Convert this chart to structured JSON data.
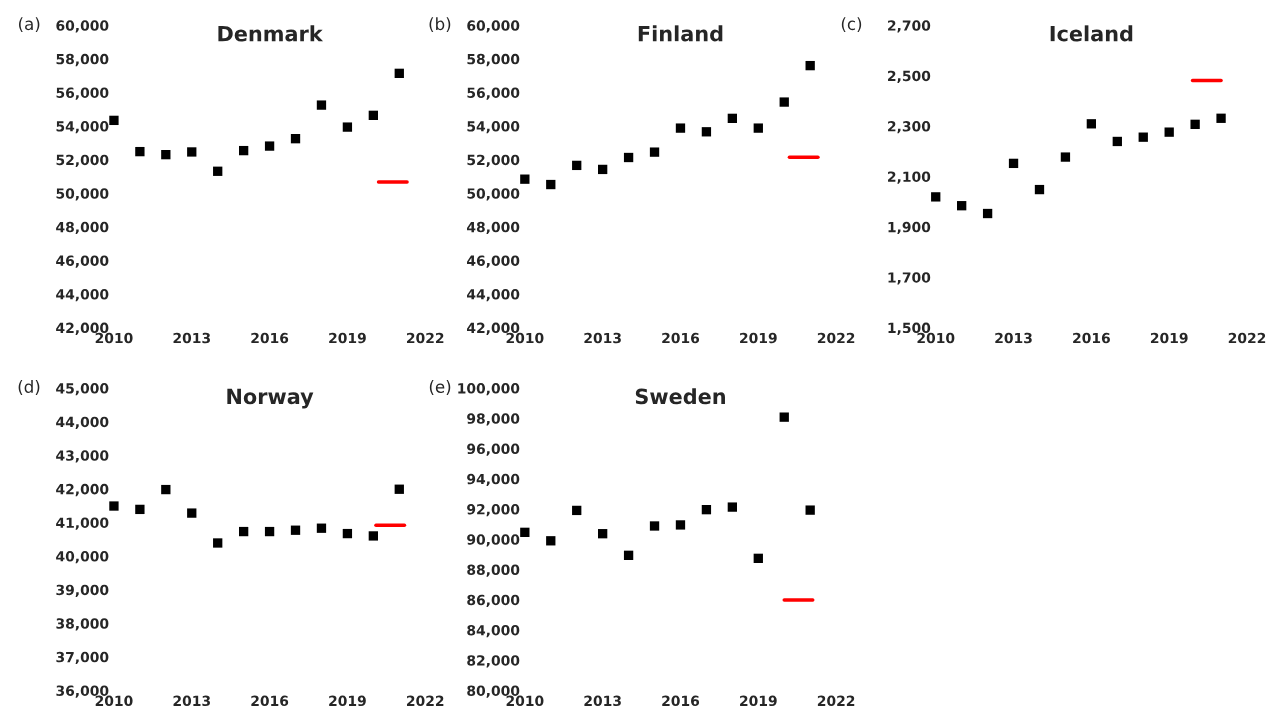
{
  "chart_data": [
    {
      "type": "scatter",
      "title": "Denmark",
      "annotations": [
        "(a)"
      ],
      "legend": false,
      "grid": false,
      "x": [
        2010,
        2011,
        2012,
        2013,
        2014,
        2015,
        2016,
        2017,
        2018,
        2019,
        2020,
        2021
      ],
      "xlim": [
        2010,
        2022
      ],
      "xticks": [
        2010,
        2013,
        2016,
        2019,
        2022
      ],
      "ylim": [
        42000,
        60000
      ],
      "yticks": [
        {
          "value": 42000,
          "label": "42,000"
        },
        {
          "value": 44000,
          "label": "44,000"
        },
        {
          "value": 46000,
          "label": "46,000"
        },
        {
          "value": 48000,
          "label": "48,000"
        },
        {
          "value": 50000,
          "label": "50,000"
        },
        {
          "value": 52000,
          "label": "52,000"
        },
        {
          "value": 54000,
          "label": "54,000"
        },
        {
          "value": 56000,
          "label": "56,000"
        },
        {
          "value": 58000,
          "label": "58,000"
        },
        {
          "value": 60000,
          "label": "60,000"
        }
      ],
      "series": [
        {
          "color": "#000000",
          "marker": "square",
          "values": [
            54340,
            52480,
            52300,
            52460,
            51310,
            52540,
            52810,
            53250,
            55250,
            53940,
            54640,
            57140
          ]
        },
        {
          "type": "line",
          "color": "#ff0000",
          "x": [
            2020.2,
            2021.3
          ],
          "values": [
            50670,
            50670
          ]
        }
      ]
    },
    {
      "type": "scatter",
      "title": "Finland",
      "annotations": [
        "(b)"
      ],
      "legend": false,
      "grid": false,
      "x": [
        2010,
        2011,
        2012,
        2013,
        2014,
        2015,
        2016,
        2017,
        2018,
        2019,
        2020,
        2021
      ],
      "xlim": [
        2010,
        2022
      ],
      "xticks": [
        2010,
        2013,
        2016,
        2019,
        2022
      ],
      "ylim": [
        42000,
        60000
      ],
      "yticks": [
        {
          "value": 42000,
          "label": "42,000"
        },
        {
          "value": 44000,
          "label": "44,000"
        },
        {
          "value": 46000,
          "label": "46,000"
        },
        {
          "value": 48000,
          "label": "48,000"
        },
        {
          "value": 50000,
          "label": "50,000"
        },
        {
          "value": 52000,
          "label": "52,000"
        },
        {
          "value": 54000,
          "label": "54,000"
        },
        {
          "value": 56000,
          "label": "56,000"
        },
        {
          "value": 58000,
          "label": "58,000"
        },
        {
          "value": 60000,
          "label": "60,000"
        }
      ],
      "series": [
        {
          "color": "#000000",
          "marker": "square",
          "values": [
            50840,
            50520,
            51660,
            51420,
            52130,
            52450,
            53880,
            53660,
            54460,
            53880,
            55430,
            57600
          ]
        },
        {
          "type": "line",
          "color": "#ff0000",
          "x": [
            2020.2,
            2021.3
          ],
          "values": [
            52150,
            52150
          ]
        }
      ]
    },
    {
      "type": "scatter",
      "title": "Iceland",
      "annotations": [
        "(c)"
      ],
      "legend": false,
      "grid": false,
      "x": [
        2010,
        2011,
        2012,
        2013,
        2014,
        2015,
        2016,
        2017,
        2018,
        2019,
        2020,
        2021
      ],
      "xlim": [
        2010,
        2022
      ],
      "xticks": [
        2010,
        2013,
        2016,
        2019,
        2022
      ],
      "ylim": [
        1500,
        2700
      ],
      "yticks": [
        {
          "value": 1500,
          "label": "1,500"
        },
        {
          "value": 1700,
          "label": "1,700"
        },
        {
          "value": 1900,
          "label": "1,900"
        },
        {
          "value": 2100,
          "label": "2,100"
        },
        {
          "value": 2300,
          "label": "2,300"
        },
        {
          "value": 2500,
          "label": "2,500"
        },
        {
          "value": 2700,
          "label": "2,700"
        }
      ],
      "series": [
        {
          "color": "#000000",
          "marker": "square",
          "values": [
            2019,
            1984,
            1953,
            2152,
            2048,
            2177,
            2309,
            2239,
            2256,
            2276,
            2307,
            2331
          ]
        },
        {
          "type": "line",
          "color": "#ff0000",
          "x": [
            2019.9,
            2021.0
          ],
          "values": [
            2481,
            2481
          ]
        }
      ]
    },
    {
      "type": "scatter",
      "title": "Norway",
      "annotations": [
        "(d)"
      ],
      "legend": false,
      "grid": false,
      "x": [
        2010,
        2011,
        2012,
        2013,
        2014,
        2015,
        2016,
        2017,
        2018,
        2019,
        2020,
        2021
      ],
      "xlim": [
        2010,
        2022
      ],
      "xticks": [
        2010,
        2013,
        2016,
        2019,
        2022
      ],
      "ylim": [
        36000,
        45000
      ],
      "yticks": [
        {
          "value": 36000,
          "label": "36,000"
        },
        {
          "value": 37000,
          "label": "37,000"
        },
        {
          "value": 38000,
          "label": "38,000"
        },
        {
          "value": 39000,
          "label": "39,000"
        },
        {
          "value": 40000,
          "label": "40,000"
        },
        {
          "value": 41000,
          "label": "41,000"
        },
        {
          "value": 42000,
          "label": "42,000"
        },
        {
          "value": 43000,
          "label": "43,000"
        },
        {
          "value": 44000,
          "label": "44,000"
        },
        {
          "value": 45000,
          "label": "45,000"
        }
      ],
      "series": [
        {
          "color": "#000000",
          "marker": "square",
          "values": [
            41490,
            41390,
            41980,
            41280,
            40390,
            40730,
            40730,
            40770,
            40830,
            40670,
            40600,
            41990
          ]
        },
        {
          "type": "line",
          "color": "#ff0000",
          "x": [
            2020.1,
            2021.2
          ],
          "values": [
            40920,
            40920
          ]
        }
      ]
    },
    {
      "type": "scatter",
      "title": "Sweden",
      "annotations": [
        "(e)"
      ],
      "legend": false,
      "grid": false,
      "x": [
        2010,
        2011,
        2012,
        2013,
        2014,
        2015,
        2016,
        2017,
        2018,
        2019,
        2020,
        2021
      ],
      "xlim": [
        2010,
        2022
      ],
      "xticks": [
        2010,
        2013,
        2016,
        2019,
        2022
      ],
      "ylim": [
        80000,
        100000
      ],
      "yticks": [
        {
          "value": 80000,
          "label": "80,000"
        },
        {
          "value": 82000,
          "label": "82,000"
        },
        {
          "value": 84000,
          "label": "84,000"
        },
        {
          "value": 86000,
          "label": "86,000"
        },
        {
          "value": 88000,
          "label": "88,000"
        },
        {
          "value": 90000,
          "label": "90,000"
        },
        {
          "value": 92000,
          "label": "92,000"
        },
        {
          "value": 94000,
          "label": "94,000"
        },
        {
          "value": 96000,
          "label": "96,000"
        },
        {
          "value": 98000,
          "label": "98,000"
        },
        {
          "value": 100000,
          "label": "100,000"
        }
      ],
      "series": [
        {
          "color": "#000000",
          "marker": "square",
          "values": [
            90460,
            89900,
            91910,
            90370,
            88940,
            90880,
            90950,
            91960,
            92130,
            88740,
            98080,
            91930
          ]
        },
        {
          "type": "line",
          "color": "#ff0000",
          "x": [
            2020.0,
            2021.1
          ],
          "values": [
            85990,
            85990
          ]
        }
      ]
    }
  ]
}
